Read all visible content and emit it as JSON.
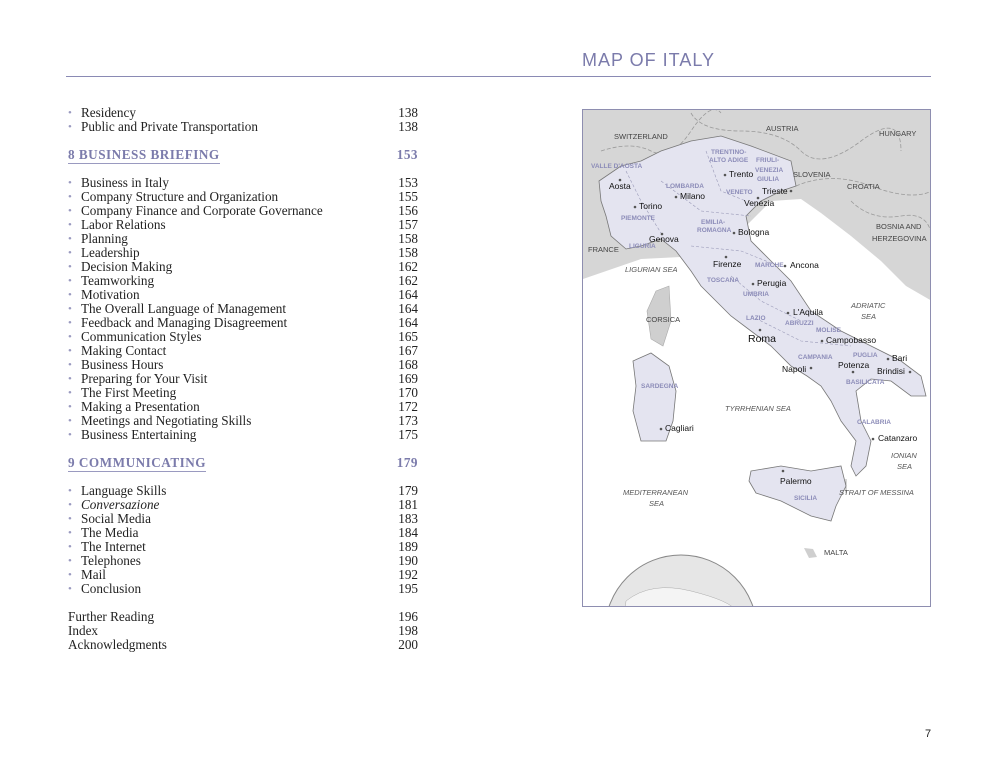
{
  "page_title": "MAP OF ITALY",
  "page_number": "7",
  "toc": {
    "pre_items": [
      {
        "label": "Residency",
        "page": "138"
      },
      {
        "label": "Public and Private Transportation",
        "page": "138"
      }
    ],
    "chapter8": {
      "label": "8  BUSINESS BRIEFING",
      "page": "153"
    },
    "ch8_items": [
      {
        "label": "Business in Italy",
        "page": "153"
      },
      {
        "label": "Company Structure and Organization",
        "page": "155"
      },
      {
        "label": "Company Finance and Corporate Governance",
        "page": "156"
      },
      {
        "label": "Labor Relations",
        "page": "157"
      },
      {
        "label": "Planning",
        "page": "158"
      },
      {
        "label": "Leadership",
        "page": "158"
      },
      {
        "label": "Decision Making",
        "page": "162"
      },
      {
        "label": "Teamworking",
        "page": "162"
      },
      {
        "label": "Motivation",
        "page": "164"
      },
      {
        "label": "The Overall Language of Management",
        "page": "164"
      },
      {
        "label": "Feedback and Managing Disagreement",
        "page": "164"
      },
      {
        "label": "Communication Styles",
        "page": "165"
      },
      {
        "label": "Making Contact",
        "page": "167"
      },
      {
        "label": "Business Hours",
        "page": "168"
      },
      {
        "label": "Preparing for Your Visit",
        "page": "169"
      },
      {
        "label": "The First Meeting",
        "page": "170"
      },
      {
        "label": "Making a Presentation",
        "page": "172"
      },
      {
        "label": "Meetings and Negotiating Skills",
        "page": "173"
      },
      {
        "label": "Business Entertaining",
        "page": "175"
      }
    ],
    "chapter9": {
      "label": "9  COMMUNICATING",
      "page": "179"
    },
    "ch9_items": [
      {
        "label": "Language Skills",
        "page": "179"
      },
      {
        "label": "Conversazione",
        "page": "181"
      },
      {
        "label": "Social Media",
        "page": "183"
      },
      {
        "label": "The Media",
        "page": "184"
      },
      {
        "label": "The Internet",
        "page": "189"
      },
      {
        "label": "Telephones",
        "page": "190"
      },
      {
        "label": "Mail",
        "page": "192"
      },
      {
        "label": "Conclusion",
        "page": "195"
      }
    ],
    "back_matter": [
      {
        "label": "Further Reading",
        "page": "196"
      },
      {
        "label": "Index",
        "page": "198"
      },
      {
        "label": "Acknowledgments",
        "page": "200"
      }
    ]
  },
  "map": {
    "colors": {
      "italy": "#e4e4f0",
      "land": "#d6d6d6",
      "region_label": "#8c8cb8",
      "accent": "#7b7bab"
    },
    "cities": [
      "Aosta",
      "Torino",
      "Milano",
      "Trento",
      "Trieste",
      "Venezia",
      "Genova",
      "Bologna",
      "Firenze",
      "Ancona",
      "Perugia",
      "L'Aquila",
      "Roma",
      "Campobasso",
      "Bari",
      "Brindisi",
      "Napoli",
      "Potenza",
      "Cagliari",
      "Catanzaro",
      "Palermo"
    ],
    "regions": [
      "VALLE D'AOSTA",
      "TRENTINO-",
      "ALTO ADIGE",
      "FRIULI-",
      "VENEZIA",
      "GIULIA",
      "LOMBARDA",
      "VENETO",
      "PIEMONTE",
      "EMILIA-",
      "ROMAGNA",
      "LIGURIA",
      "MARCHE",
      "TOSCANA",
      "UMBRIA",
      "LAZIO",
      "ABRUZZI",
      "MOLISE",
      "CAMPANIA",
      "PUGLIA",
      "BASILICATA",
      "SARDEGNA",
      "CALABRIA",
      "SICILIA"
    ],
    "countries": [
      "SWITZERLAND",
      "AUSTRIA",
      "HUNGARY",
      "SLOVENIA",
      "CROATIA",
      "BOSNIA AND",
      "HERZEGOVINA",
      "FRANCE",
      "CORSICA",
      "MALTA"
    ],
    "seas": [
      "LIGURIAN SEA",
      "ADRIATIC",
      "SEA",
      "TYRRHENIAN SEA",
      "IONIAN",
      "SEA",
      "MEDITERRANEAN",
      "SEA",
      "STRAIT OF MESSINA"
    ]
  }
}
